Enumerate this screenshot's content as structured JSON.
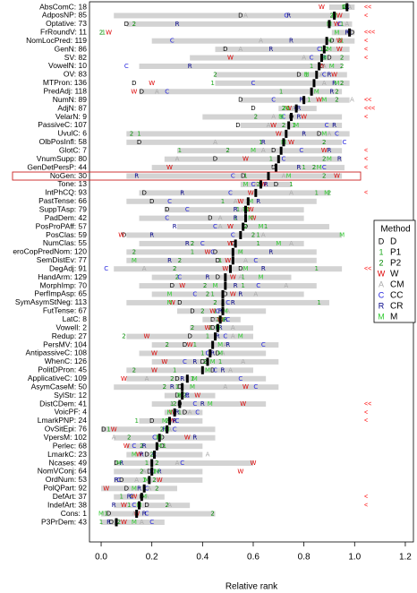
{
  "chart_data": {
    "type": "dotplot",
    "xlabel": "Relative rank",
    "xlim": [
      -0.046,
      1.232
    ],
    "xticks": [
      {
        "value": 0,
        "label": "0.0"
      },
      0.2,
      0.4,
      0.6,
      0.8,
      {
        "value": 1,
        "label": "1.0"
      },
      1.2
    ],
    "legend_title": "Method",
    "legend_position": "right",
    "bar_color": "#d3d3d3",
    "median_color": "#000000",
    "note_color": "#ff0000",
    "highlight_color": "#cc2222",
    "methods": [
      {
        "name": "D",
        "symbol": "D",
        "color": "#000000"
      },
      {
        "name": "P1",
        "symbol": "1",
        "color": "#22aa22"
      },
      {
        "name": "P2",
        "symbol": "2",
        "color": "#008800"
      },
      {
        "name": "W",
        "symbol": "W",
        "color": "#dd0000"
      },
      {
        "name": "CM",
        "symbol": "A",
        "color": "#aaaaaa"
      },
      {
        "name": "CC",
        "symbol": "C",
        "color": "#2222dd"
      },
      {
        "name": "CR",
        "symbol": "R",
        "color": "#000088"
      },
      {
        "name": "M",
        "symbol": "M",
        "color": "#33cc33"
      }
    ],
    "rows": [
      {
        "label": "AbsComC: 18",
        "median": 0.97,
        "range": [
          0.9,
          1.0
        ],
        "points": [
          0.96,
          0.97,
          0.96,
          0.87,
          0.98,
          0.97,
          0.97,
          0.96
        ],
        "note": "<<"
      },
      {
        "label": "AdposNP: 85",
        "median": 0.92,
        "range": [
          0.05,
          0.98
        ],
        "points": [
          0.55,
          0.92,
          0.91,
          0.94,
          0.57,
          0.73,
          0.74,
          0.92
        ],
        "note": "<"
      },
      {
        "label": "Optative: 73",
        "median": 0.9,
        "range": [
          0.1,
          0.99
        ],
        "points": [
          0.1,
          0.95,
          0.13,
          0.93,
          0.97,
          0.94,
          0.3,
          0.9
        ]
      },
      {
        "label": "FrRoundV: 11",
        "median": 0.98,
        "range": [
          0.91,
          1.0
        ],
        "points": [
          0.99,
          0.01,
          0.0,
          0.03,
          0.97,
          0.98,
          0.97,
          0.93
        ],
        "note": "<<<"
      },
      {
        "label": "NomLocPred: 119",
        "median": 0.89,
        "range": [
          0.2,
          1.0
        ],
        "points": [
          0.91,
          0.95,
          0.94,
          0.94,
          0.63,
          0.28,
          0.75,
          0.9
        ],
        "note": "<"
      },
      {
        "label": "GenN: 86",
        "median": 0.88,
        "range": [
          0.45,
          0.98
        ],
        "points": [
          0.49,
          0.87,
          0.89,
          0.94,
          0.55,
          0.86,
          0.67,
          0.9
        ],
        "note": "<"
      },
      {
        "label": "SV: 82",
        "median": 0.87,
        "range": [
          0.35,
          0.98
        ],
        "points": [
          0.9,
          0.88,
          0.95,
          0.51,
          0.8,
          0.83,
          0.88,
          0.88
        ],
        "note": "<"
      },
      {
        "label": "VowelN: 10",
        "median": 0.86,
        "range": [
          0.15,
          0.95
        ],
        "points": [
          0.87,
          0.83,
          0.95,
          0.87,
          0.88,
          0.1,
          0.35,
          0.91
        ]
      },
      {
        "label": "OV: 83",
        "median": 0.85,
        "range": [
          0.45,
          0.97
        ],
        "points": [
          0.78,
          0.81,
          0.45,
          0.92,
          0.87,
          0.88,
          0.9,
          0.81
        ]
      },
      {
        "label": "MTPron: 136",
        "median": 0.84,
        "range": [
          0.45,
          0.98
        ],
        "points": [
          0.13,
          0.44,
          0.95,
          0.2,
          0.88,
          0.6,
          0.92,
          0.93
        ]
      },
      {
        "label": "PredAdj: 118",
        "median": 0.83,
        "range": [
          0.15,
          0.95
        ],
        "points": [
          0.16,
          0.71,
          0.93,
          0.13,
          0.22,
          0.26,
          0.91,
          0.85
        ]
      },
      {
        "label": "NumN: 89",
        "median": 0.8,
        "range": [
          0.55,
          0.98
        ],
        "points": [
          0.55,
          0.82,
          0.93,
          0.86,
          0.99,
          0.68,
          0.79,
          0.88
        ],
        "note": "<<"
      },
      {
        "label": "AdjN: 87",
        "median": 0.77,
        "range": [
          0.7,
          0.85
        ],
        "points": [
          0.6,
          0.74,
          0.72,
          0.74,
          0.76,
          0.77,
          0.78,
          0.73
        ],
        "note": "<<<"
      },
      {
        "label": "VelarN: 9",
        "median": 0.75,
        "range": [
          0.4,
          0.95
        ],
        "points": [
          0.75,
          0.71,
          0.61,
          0.8,
          0.68,
          0.72,
          0.78,
          0.71
        ],
        "note": "<"
      },
      {
        "label": "PassiveC: 107",
        "median": 0.74,
        "range": [
          0.55,
          0.95
        ],
        "points": [
          0.54,
          0.76,
          0.72,
          0.68,
          0.66,
          0.89,
          0.92,
          0.77
        ]
      },
      {
        "label": "UvulC: 6",
        "median": 0.73,
        "range": [
          0.1,
          0.98
        ],
        "points": [
          0.86,
          0.15,
          0.12,
          0.7,
          0.9,
          0.93,
          0.8,
          0.88
        ]
      },
      {
        "label": "OlbPosInfl: 58",
        "median": 0.72,
        "range": [
          0.1,
          0.95
        ],
        "points": [
          0.15,
          0.63,
          0.88,
          0.75,
          0.45,
          0.96,
          0.64,
          0.72
        ]
      },
      {
        "label": "GlotC: 7",
        "median": 0.71,
        "range": [
          0.3,
          0.95
        ],
        "points": [
          0.68,
          0.31,
          0.5,
          0.88,
          0.64,
          0.79,
          0.9,
          0.6
        ],
        "note": "<"
      },
      {
        "label": "VnumSupp: 80",
        "median": 0.7,
        "range": [
          0.25,
          0.95
        ],
        "points": [
          0.45,
          0.67,
          0.88,
          0.57,
          0.3,
          0.72,
          0.94,
          0.9
        ],
        "note": "<"
      },
      {
        "label": "GenDetPersP: 44",
        "median": 0.69,
        "range": [
          0.2,
          0.96
        ],
        "points": [
          0.68,
          0.8,
          0.84,
          0.27,
          0.68,
          0.88,
          0.78,
          0.86
        ],
        "note": "<"
      },
      {
        "label": "NoGen: 30",
        "median": 0.66,
        "range": [
          0.1,
          0.95
        ],
        "points": [
          0.56,
          0.57,
          0.88,
          0.93,
          0.72,
          0.52,
          0.14,
          0.74
        ],
        "highlighted": true
      },
      {
        "label": "Tone: 13",
        "median": 0.63,
        "range": [
          0.55,
          0.75
        ],
        "points": [
          0.69,
          0.75,
          0.62,
          0.64,
          0.61,
          0.6,
          0.65,
          0.57
        ]
      },
      {
        "label": "IntPhCQ: 93",
        "median": 0.61,
        "range": [
          0.15,
          0.9
        ],
        "points": [
          0.17,
          0.85,
          0.9,
          0.59,
          0.75,
          0.51,
          0.32,
          0.89
        ],
        "note": "<"
      },
      {
        "label": "PastTense: 66",
        "median": 0.58,
        "range": [
          0.1,
          0.85
        ],
        "points": [
          0.2,
          0.48,
          0.58,
          0.55,
          0.53,
          0.27,
          0.62,
          0.59
        ]
      },
      {
        "label": "SuppTAsp: 79",
        "median": 0.57,
        "range": [
          0.25,
          0.8
        ],
        "points": [
          0.26,
          0.54,
          0.58,
          0.59,
          0.56,
          0.34,
          0.53,
          0.57
        ]
      },
      {
        "label": "PadDem: 42",
        "median": 0.57,
        "range": [
          0.15,
          0.8
        ],
        "points": [
          0.43,
          0.53,
          0.57,
          0.6,
          0.47,
          0.26,
          0.53,
          0.59
        ]
      },
      {
        "label": "PosProPAff: 57",
        "median": 0.56,
        "range": [
          0.3,
          0.9
        ],
        "points": [
          0.57,
          0.65,
          0.57,
          0.51,
          0.47,
          0.45,
          0.29,
          0.63
        ]
      },
      {
        "label": "PosClas: 59",
        "median": 0.55,
        "range": [
          0.1,
          0.95
        ],
        "points": [
          0.09,
          0.62,
          0.6,
          0.08,
          0.64,
          0.52,
          0.2,
          0.95
        ]
      },
      {
        "label": "NumClas: 55",
        "median": 0.53,
        "range": [
          0.15,
          0.8
        ],
        "points": [
          0.52,
          0.62,
          0.36,
          0.51,
          0.75,
          0.4,
          0.34,
          0.7
        ]
      },
      {
        "label": "eroCopPredNom: 120",
        "median": 0.52,
        "range": [
          0.1,
          0.85
        ],
        "points": [
          0.45,
          0.36,
          0.13,
          0.42,
          0.55,
          0.44,
          0.67,
          0.55
        ]
      },
      {
        "label": "SemDistEv: 77",
        "median": 0.52,
        "range": [
          0.1,
          0.85
        ],
        "points": [
          0.46,
          0.47,
          0.31,
          0.5,
          0.57,
          0.61,
          0.27,
          0.13
        ]
      },
      {
        "label": "DegAdj: 91",
        "median": 0.51,
        "range": [
          0.05,
          0.95
        ],
        "points": [
          0.55,
          0.85,
          0.29,
          0.49,
          0.17,
          0.02,
          0.64,
          0.57
        ],
        "note": "<<"
      },
      {
        "label": "HandArm: 129",
        "median": 0.49,
        "range": [
          0.2,
          0.75
        ],
        "points": [
          0.46,
          0.56,
          0.3,
          0.52,
          0.55,
          0.31,
          0.42,
          0.63
        ]
      },
      {
        "label": "MorphImp: 70",
        "median": 0.49,
        "range": [
          0.15,
          0.85
        ],
        "points": [
          0.28,
          0.56,
          0.41,
          0.32,
          0.73,
          0.62,
          0.53,
          0.45
        ]
      },
      {
        "label": "PerfImpAsp: 65",
        "median": 0.48,
        "range": [
          0.2,
          0.8
        ],
        "points": [
          0.49,
          0.44,
          0.42,
          0.52,
          0.61,
          0.37,
          0.55,
          0.27
        ]
      },
      {
        "label": "SymAsymStNeg: 113",
        "median": 0.48,
        "range": [
          0.1,
          0.9
        ],
        "points": [
          0.31,
          0.86,
          0.45,
          0.28,
          0.48,
          0.5,
          0.52,
          0.27
        ]
      },
      {
        "label": "FutTense: 67",
        "median": 0.48,
        "range": [
          0.3,
          0.65
        ],
        "points": [
          0.36,
          0.45,
          0.4,
          0.44,
          0.5,
          0.46,
          0.47,
          0.49
        ]
      },
      {
        "label": "LatC: 8",
        "median": 0.47,
        "range": [
          0.4,
          0.55
        ],
        "points": [
          0.44,
          0.48,
          0.46,
          0.47,
          0.45,
          0.5,
          0.49,
          0.48
        ]
      },
      {
        "label": "VowelI: 2",
        "median": 0.46,
        "range": [
          0.35,
          0.6
        ],
        "points": [
          0.44,
          0.43,
          0.36,
          0.42,
          0.52,
          0.46,
          0.47,
          0.46
        ]
      },
      {
        "label": "Redup: 27",
        "median": 0.45,
        "range": [
          0.1,
          0.6
        ],
        "points": [
          0.35,
          0.42,
          0.09,
          0.18,
          0.52,
          0.49,
          0.46,
          0.55
        ]
      },
      {
        "label": "PersMV: 104",
        "median": 0.44,
        "range": [
          0.2,
          0.7
        ],
        "points": [
          0.33,
          0.37,
          0.26,
          0.35,
          0.49,
          0.64,
          0.5,
          0.47
        ]
      },
      {
        "label": "AntipassiveC: 108",
        "median": 0.43,
        "range": [
          0.15,
          0.65
        ],
        "points": [
          0.46,
          0.4,
          0.43,
          0.21,
          0.48,
          0.42,
          0.44,
          0.47
        ]
      },
      {
        "label": "WhenC: 126",
        "median": 0.42,
        "range": [
          0.2,
          0.7
        ],
        "points": [
          0.4,
          0.47,
          0.41,
          0.25,
          0.56,
          0.33,
          0.37,
          0.44
        ]
      },
      {
        "label": "PolitDPron: 45",
        "median": 0.4,
        "range": [
          0.1,
          0.6
        ],
        "points": [
          0.44,
          0.29,
          0.13,
          0.21,
          0.51,
          0.45,
          0.48,
          0.42
        ]
      },
      {
        "label": "ApplicativeC: 109",
        "median": 0.34,
        "range": [
          0.1,
          0.65
        ],
        "points": [
          0.3,
          0.36,
          0.28,
          0.09,
          0.18,
          0.55,
          0.32,
          0.37
        ]
      },
      {
        "label": "AsymCaseM: 50",
        "median": 0.32,
        "range": [
          0.05,
          0.7
        ],
        "points": [
          0.31,
          0.3,
          0.25,
          0.57,
          0.49,
          0.61,
          0.28,
          0.36
        ]
      },
      {
        "label": "SylStr: 12",
        "median": 0.32,
        "range": [
          0.25,
          0.45
        ],
        "points": [
          0.3,
          0.31,
          0.33,
          0.38,
          0.32,
          0.34,
          0.34,
          0.31
        ]
      },
      {
        "label": "DistCDem: 41",
        "median": 0.31,
        "range": [
          0.2,
          0.65
        ],
        "points": [
          0.31,
          0.28,
          0.29,
          0.56,
          0.28,
          0.37,
          0.4,
          0.43
        ],
        "note": "<<"
      },
      {
        "label": "VoicPF: 4",
        "median": 0.29,
        "range": [
          0.25,
          0.4
        ],
        "points": [
          0.33,
          0.31,
          0.29,
          0.28,
          0.35,
          0.38,
          0.3,
          0.27
        ],
        "note": "<"
      },
      {
        "label": "LmarkPNP: 24",
        "median": 0.27,
        "range": [
          0.15,
          0.4
        ],
        "points": [
          0.2,
          0.14,
          0.26,
          0.28,
          0.27,
          0.3,
          0.29,
          0.25
        ],
        "note": "<"
      },
      {
        "label": "OvSitEpi: 76",
        "median": 0.26,
        "range": [
          0.0,
          0.45
        ],
        "points": [
          0.01,
          0.03,
          0.24,
          0.05,
          0.27,
          0.29,
          0.25,
          0.26
        ]
      },
      {
        "label": "VpersM: 102",
        "median": 0.23,
        "range": [
          0.05,
          0.45
        ],
        "points": [
          0.24,
          0.22,
          0.11,
          0.34,
          0.05,
          0.21,
          0.37,
          0.23
        ]
      },
      {
        "label": "Perlec: 68",
        "median": 0.22,
        "range": [
          0.1,
          0.4
        ],
        "points": [
          0.24,
          0.25,
          0.16,
          0.1,
          0.23,
          0.13,
          0.17,
          0.23
        ]
      },
      {
        "label": "LmarkC: 23",
        "median": 0.21,
        "range": [
          0.1,
          0.4
        ],
        "points": [
          0.18,
          0.21,
          0.2,
          0.15,
          0.42,
          0.21,
          0.16,
          0.13
        ]
      },
      {
        "label": "Ncases: 49",
        "median": 0.2,
        "range": [
          0.05,
          0.6
        ],
        "points": [
          0.06,
          0.18,
          0.22,
          0.6,
          0.3,
          0.32,
          0.08,
          0.07
        ]
      },
      {
        "label": "NomVConj: 64",
        "median": 0.2,
        "range": [
          0.05,
          0.4
        ],
        "points": [
          0.19,
          0.21,
          0.16,
          0.55,
          0.17,
          0.2,
          0.23,
          0.22
        ]
      },
      {
        "label": "OrdNum: 53",
        "median": 0.19,
        "range": [
          0.05,
          0.4
        ],
        "points": [
          0.08,
          0.17,
          0.21,
          0.23,
          0.14,
          0.07,
          0.06,
          0.18
        ]
      },
      {
        "label": "PolQPart: 92",
        "median": 0.17,
        "range": [
          0.0,
          0.3
        ],
        "points": [
          0.1,
          0.17,
          0.22,
          0.02,
          0.19,
          0.18,
          0.15,
          0.13
        ]
      },
      {
        "label": "DefArt: 37",
        "median": 0.16,
        "range": [
          0.05,
          0.25
        ],
        "points": [
          0.16,
          0.08,
          0.12,
          0.13,
          0.18,
          0.12,
          0.11,
          0.17
        ],
        "note": "<"
      },
      {
        "label": "IndefArt: 38",
        "median": 0.15,
        "range": [
          0.05,
          0.35
        ],
        "points": [
          0.18,
          0.11,
          0.26,
          0.09,
          0.27,
          0.13,
          0.05,
          0.15
        ],
        "note": "<"
      },
      {
        "label": "Cons: 1",
        "median": 0.14,
        "range": [
          0.0,
          0.45
        ],
        "points": [
          0.03,
          0.02,
          0.44,
          0.14,
          0.13,
          0.18,
          0.17,
          0.0
        ]
      },
      {
        "label": "P3PrDem: 43",
        "median": 0.06,
        "range": [
          0.0,
          0.25
        ],
        "points": [
          0.04,
          0.0,
          0.07,
          0.09,
          0.16,
          0.2,
          0.03,
          0.13
        ]
      }
    ]
  }
}
